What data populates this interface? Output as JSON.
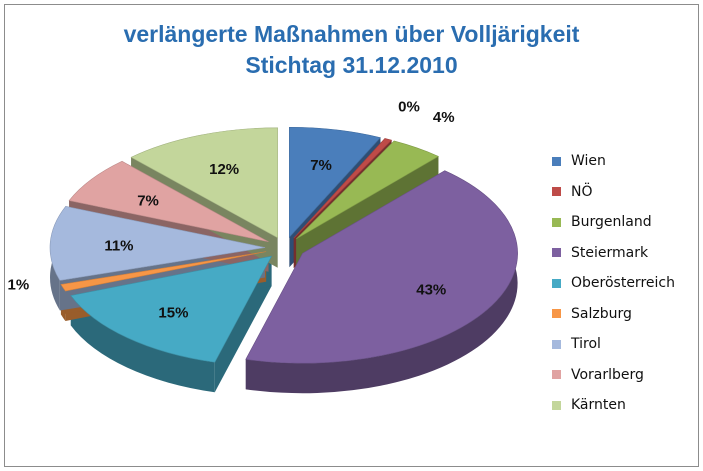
{
  "chart_data": {
    "type": "pie",
    "title": [
      "verlängerte Maßnahmen über Volljärigkeit",
      "Stichtag 31.12.2010"
    ],
    "categories": [
      "Wien",
      "NÖ",
      "Burgenland",
      "Steiermark",
      "Oberösterreich",
      "Salzburg",
      "Tirol",
      "Vorarlberg",
      "Kärnten"
    ],
    "values": [
      7,
      0,
      4,
      43,
      15,
      1,
      11,
      7,
      12
    ],
    "data_labels": [
      "7%",
      "0%",
      "4%",
      "43%",
      "15%",
      "1%",
      "11%",
      "7%",
      "12%"
    ],
    "colors": [
      "#4a7ebb",
      "#be4b48",
      "#98b954",
      "#7d60a0",
      "#46aac5",
      "#f79646",
      "#a5b9dd",
      "#e0a3a2",
      "#c3d69b"
    ],
    "style": "3d exploded",
    "legend_position": "right"
  }
}
